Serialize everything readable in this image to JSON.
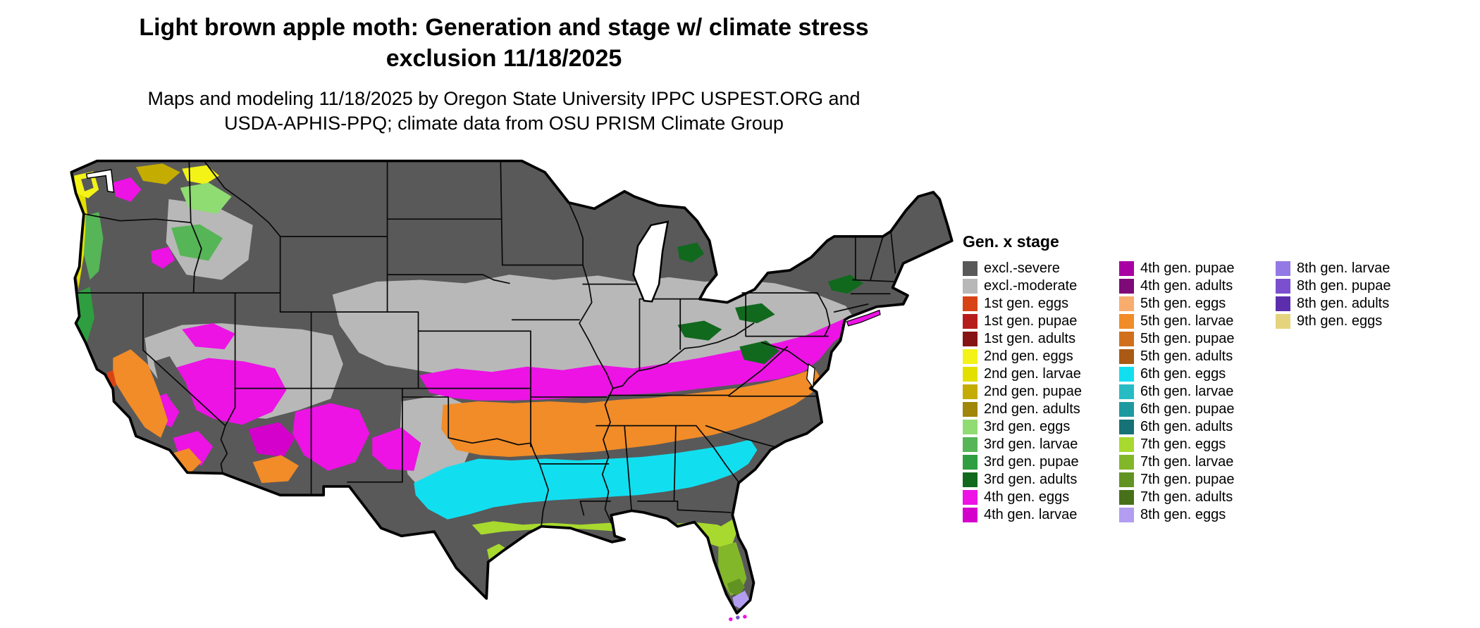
{
  "header": {
    "title_line1": "Light brown apple moth: Generation and stage w/ climate stress",
    "title_line2": "exclusion 11/18/2025",
    "subtitle_line1": "Maps and modeling 11/18/2025 by Oregon State University IPPC USPEST.ORG and",
    "subtitle_line2": "USDA-APHIS-PPQ; climate data from OSU PRISM Climate Group"
  },
  "colors": {
    "excl_severe": "#595959",
    "excl_moderate": "#b8b8b8",
    "g1_eggs": "#d84315",
    "g1_pupae": "#b71c1c",
    "g1_adults": "#871414",
    "g2_eggs": "#f3f318",
    "g2_larvae": "#e3e000",
    "g2_pupae": "#c4ad00",
    "g2_adults": "#a08609",
    "g3_eggs": "#8fdc72",
    "g3_larvae": "#56b556",
    "g3_pupae": "#2f9e41",
    "g3_adults": "#11691e",
    "g4_eggs": "#ec13e4",
    "g4_larvae": "#d400cb",
    "g4_pupae": "#a800a3",
    "g4_adults": "#7d0a78",
    "g5_eggs": "#f8ad6d",
    "g5_larvae": "#f18c28",
    "g5_pupae": "#d1701c",
    "g5_adults": "#aa5a14",
    "g6_eggs": "#11dff0",
    "g6_larvae": "#27bcc4",
    "g6_pupae": "#1d9aa0",
    "g6_adults": "#157276",
    "g7_eggs": "#a8d92e",
    "g7_larvae": "#82b729",
    "g7_pupae": "#619322",
    "g7_adults": "#47701a",
    "g8_eggs": "#b39df0",
    "g8_larvae": "#9379e4",
    "g8_pupae": "#7b50cf",
    "g8_adults": "#5c2eae",
    "g9_eggs": "#e5d47e"
  },
  "legend": {
    "title": "Gen. x stage",
    "columns": [
      [
        {
          "label": "excl.-severe",
          "key": "excl_severe"
        },
        {
          "label": "excl.-moderate",
          "key": "excl_moderate"
        },
        {
          "label": "1st gen. eggs",
          "key": "g1_eggs"
        },
        {
          "label": "1st gen. pupae",
          "key": "g1_pupae"
        },
        {
          "label": "1st gen. adults",
          "key": "g1_adults"
        },
        {
          "label": "2nd gen. eggs",
          "key": "g2_eggs"
        },
        {
          "label": "2nd gen. larvae",
          "key": "g2_larvae"
        },
        {
          "label": "2nd gen. pupae",
          "key": "g2_pupae"
        },
        {
          "label": "2nd gen. adults",
          "key": "g2_adults"
        },
        {
          "label": "3rd gen. eggs",
          "key": "g3_eggs"
        },
        {
          "label": "3rd gen. larvae",
          "key": "g3_larvae"
        },
        {
          "label": "3rd gen. pupae",
          "key": "g3_pupae"
        },
        {
          "label": "3rd gen. adults",
          "key": "g3_adults"
        },
        {
          "label": "4th gen. eggs",
          "key": "g4_eggs"
        },
        {
          "label": "4th gen. larvae",
          "key": "g4_larvae"
        }
      ],
      [
        {
          "label": "4th gen. pupae",
          "key": "g4_pupae"
        },
        {
          "label": "4th gen. adults",
          "key": "g4_adults"
        },
        {
          "label": "5th gen. eggs",
          "key": "g5_eggs"
        },
        {
          "label": "5th gen. larvae",
          "key": "g5_larvae"
        },
        {
          "label": "5th gen. pupae",
          "key": "g5_pupae"
        },
        {
          "label": "5th gen. adults",
          "key": "g5_adults"
        },
        {
          "label": "6th gen. eggs",
          "key": "g6_eggs"
        },
        {
          "label": "6th gen. larvae",
          "key": "g6_larvae"
        },
        {
          "label": "6th gen. pupae",
          "key": "g6_pupae"
        },
        {
          "label": "6th gen. adults",
          "key": "g6_adults"
        },
        {
          "label": "7th gen. eggs",
          "key": "g7_eggs"
        },
        {
          "label": "7th gen. larvae",
          "key": "g7_larvae"
        },
        {
          "label": "7th gen. pupae",
          "key": "g7_pupae"
        },
        {
          "label": "7th gen. adults",
          "key": "g7_adults"
        },
        {
          "label": "8th gen. eggs",
          "key": "g8_eggs"
        }
      ],
      [
        {
          "label": "8th gen. larvae",
          "key": "g8_larvae"
        },
        {
          "label": "8th gen. pupae",
          "key": "g8_pupae"
        },
        {
          "label": "8th gen. adults",
          "key": "g8_adults"
        },
        {
          "label": "9th gen. eggs",
          "key": "g9_eggs"
        }
      ]
    ]
  }
}
